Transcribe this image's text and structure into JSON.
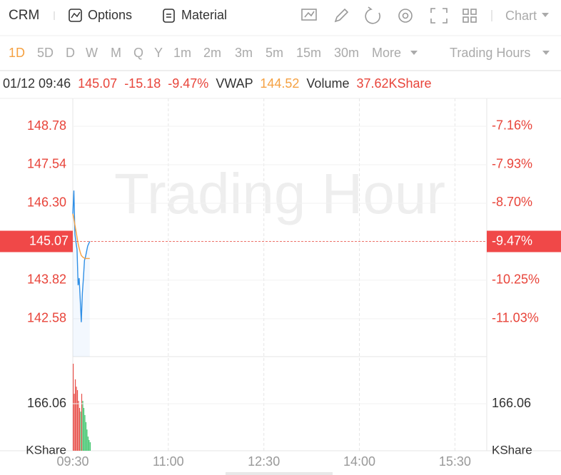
{
  "toolbar": {
    "symbol": "CRM",
    "buttons": [
      "Options",
      "Material"
    ],
    "chart_style": "Chart"
  },
  "periods": [
    "1D",
    "5D",
    "D",
    "W",
    "M",
    "Q",
    "Y",
    "1m",
    "2m",
    "3m",
    "5m",
    "15m",
    "30m",
    "More"
  ],
  "session": "Trading Hours",
  "quote": {
    "time": "01/12 09:46",
    "price": 145.07,
    "change": -15.18,
    "change_pct": "-9.47%",
    "vwap_label": "VWAP",
    "vwap": 144.52,
    "volume_label": "Volume",
    "volume": "37.62KShare"
  },
  "watermark": "Trading Hour",
  "chart_data": [
    {
      "type": "line",
      "x": [
        0,
        1,
        2,
        3,
        4,
        5,
        6,
        7,
        8,
        9,
        10,
        11,
        12,
        13,
        14,
        15,
        16
      ],
      "xlim": [
        0,
        390
      ],
      "xticks": [
        {
          "value": 0,
          "label": "09:30"
        },
        {
          "value": 90,
          "label": "11:00"
        },
        {
          "value": 180,
          "label": "12:30"
        },
        {
          "value": 270,
          "label": "14:00"
        },
        {
          "value": 360,
          "label": "15:30"
        }
      ],
      "ylim": [
        141.36,
        149.63
      ],
      "yticks": [
        148.78,
        147.54,
        {
          "value": 146.3,
          "label": "146.30"
        },
        143.82,
        142.58
      ],
      "y2lim": [
        -11.79,
        -6.63
      ],
      "y2ticks": [
        {
          "value": -7.16,
          "label": "-7.16%"
        },
        {
          "value": -7.93,
          "label": "-7.93%"
        },
        {
          "value": -8.7,
          "label": "-8.70%"
        },
        {
          "value": -10.25,
          "label": "-10.25%"
        },
        {
          "value": -11.03,
          "label": "-11.03%"
        }
      ],
      "grid": true,
      "series": [
        {
          "color": "#2f8fe6",
          "values": [
            145.96,
            146.71,
            145.3,
            145.04,
            144.81,
            143.66,
            143.89,
            143.2,
            142.47,
            143.4,
            143.89,
            144.46,
            144.58,
            144.75,
            144.92,
            145.0,
            145.07
          ]
        },
        {
          "color": "#f5a142",
          "values": [
            145.96,
            145.8,
            145.6,
            145.4,
            145.2,
            145.0,
            144.85,
            144.72,
            144.62,
            144.58,
            144.55,
            144.53,
            144.52,
            144.52,
            144.52,
            144.52,
            144.52
          ]
        }
      ]
    },
    {
      "type": "bar",
      "x": [
        0,
        1,
        2,
        3,
        4,
        5,
        6,
        7,
        8,
        9,
        10,
        11,
        12,
        13,
        14,
        15,
        16
      ],
      "xlim": [
        0,
        390
      ],
      "ylim": [
        0,
        332.12
      ],
      "yticks": [
        166.06
      ],
      "unit": "KShare",
      "values": [
        307,
        201,
        252,
        226,
        214,
        176,
        151,
        138,
        201,
        176,
        151,
        126,
        101,
        75,
        50,
        38,
        30
      ],
      "colors": [
        "#e8504a",
        "#e8504a",
        "#e8504a",
        "#e8504a",
        "#e8504a",
        "#e8504a",
        "#e8504a",
        "#3cc46a",
        "#e8504a",
        "#3cc46a",
        "#3cc46a",
        "#3cc46a",
        "#3cc46a",
        "#3cc46a",
        "#3cc46a",
        "#3cc46a",
        "#3cc46a"
      ]
    }
  ]
}
